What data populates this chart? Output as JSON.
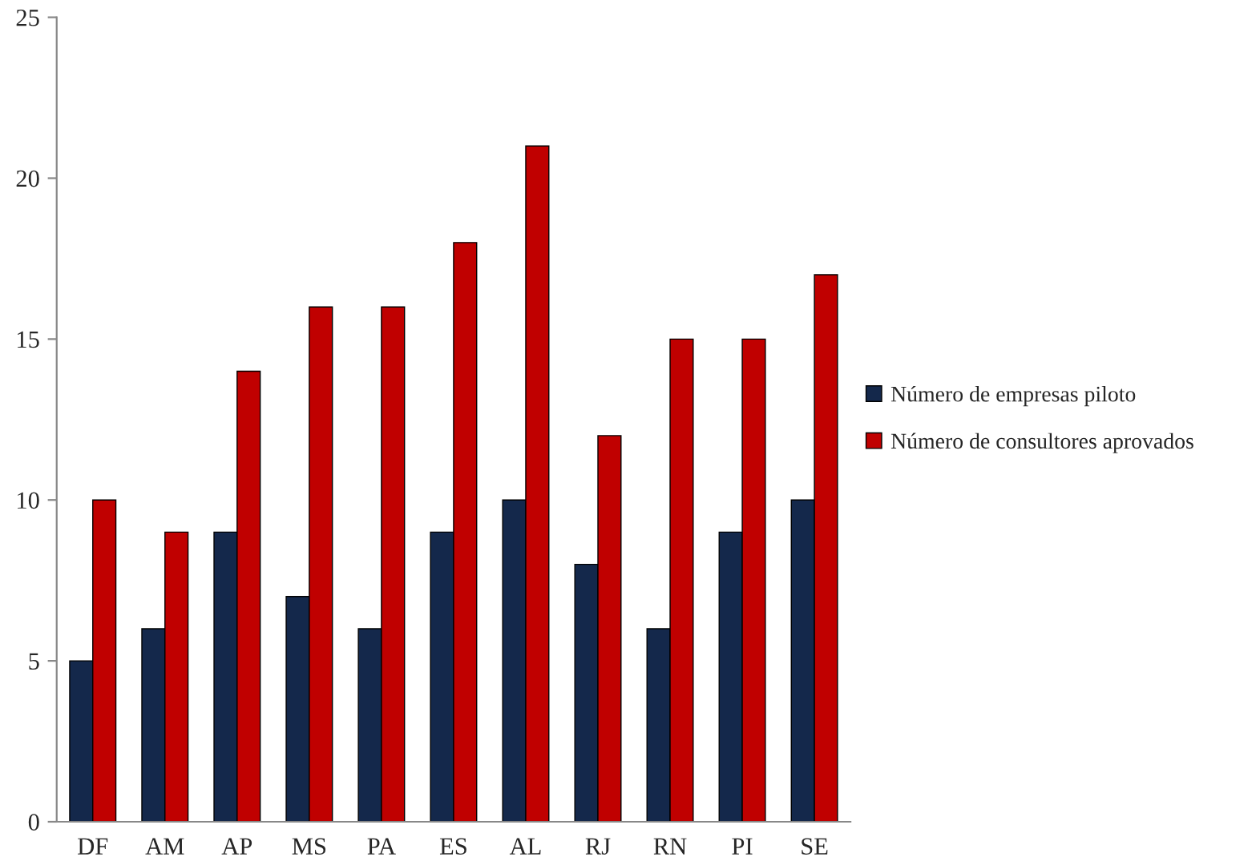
{
  "chart_data": {
    "type": "bar",
    "categories": [
      "DF",
      "AM",
      "AP",
      "MS",
      "PA",
      "ES",
      "AL",
      "RJ",
      "RN",
      "PI",
      "SE"
    ],
    "series": [
      {
        "name": "Número de empresas piloto",
        "color": "#14284b",
        "values": [
          5,
          6,
          9,
          7,
          6,
          9,
          10,
          8,
          6,
          9,
          10
        ]
      },
      {
        "name": "Número de consultores aprovados",
        "color": "#c00000",
        "values": [
          10,
          9,
          14,
          16,
          16,
          18,
          21,
          12,
          15,
          15,
          17
        ]
      }
    ],
    "ylim": [
      0,
      25
    ],
    "yticks": [
      0,
      5,
      10,
      15,
      20,
      25
    ],
    "grid": false,
    "legend": "right"
  }
}
